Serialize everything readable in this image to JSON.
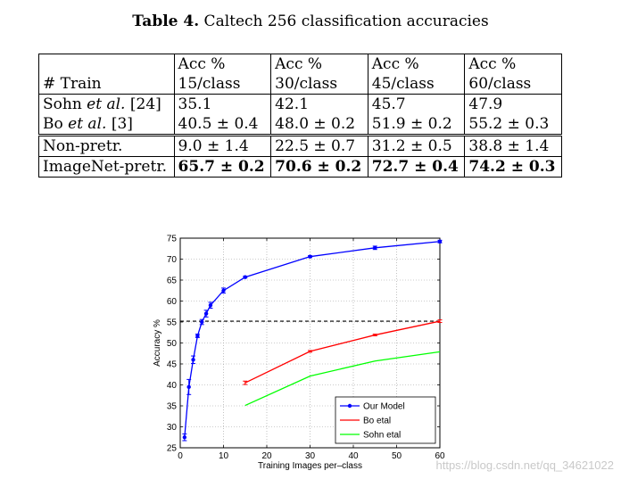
{
  "caption": {
    "label": "Table 4.",
    "text": " Caltech 256 classification accuracies"
  },
  "table": {
    "header": [
      [
        "",
        "Acc %",
        "Acc %",
        "Acc %",
        "Acc %"
      ],
      [
        "# Train",
        "15/class",
        "30/class",
        "45/class",
        "60/class"
      ]
    ],
    "rows": [
      {
        "method": "Sohn",
        "suffix": " et al.",
        "cite": " [24]",
        "values": [
          "35.1",
          "42.1",
          "45.7",
          "47.9"
        ]
      },
      {
        "method": "Bo",
        "suffix": " et al.",
        "cite": " [3]",
        "values": [
          "40.5 ± 0.4",
          "48.0 ± 0.2",
          "51.9 ± 0.2",
          "55.2 ± 0.3"
        ]
      },
      {
        "method": "Non-pretr.",
        "suffix": "",
        "cite": "",
        "values": [
          "9.0 ± 1.4",
          "22.5 ± 0.7",
          "31.2 ± 0.5",
          "38.8 ± 1.4"
        ]
      },
      {
        "method": "ImageNet-pretr.",
        "suffix": "",
        "cite": "",
        "values": [
          "65.7 ± 0.2",
          "70.6 ± 0.2",
          "72.7 ± 0.4",
          "74.2 ± 0.3"
        ]
      }
    ]
  },
  "chart_data": {
    "type": "line",
    "xlabel": "Training Images per–class",
    "ylabel": "Accuracy %",
    "xlim": [
      0,
      60
    ],
    "ylim": [
      25,
      75
    ],
    "xticks": [
      0,
      10,
      20,
      30,
      40,
      50,
      60
    ],
    "yticks": [
      25,
      30,
      35,
      40,
      45,
      50,
      55,
      60,
      65,
      70,
      75
    ],
    "grid": true,
    "legend_position": "bottom-right",
    "reference_line": {
      "y": 55.2,
      "style": "dashed",
      "color": "#000000"
    },
    "series": [
      {
        "name": "Our Model",
        "color": "#0000ff",
        "marker": "dot",
        "x": [
          1,
          2,
          3,
          4,
          5,
          6,
          7,
          10,
          15,
          30,
          45,
          60
        ],
        "y": [
          27.5,
          39.5,
          46.0,
          51.7,
          55.0,
          57.0,
          59.0,
          62.5,
          65.7,
          70.6,
          72.7,
          74.2
        ],
        "err": [
          0.8,
          1.8,
          0.9,
          0.4,
          0.6,
          0.8,
          0.7,
          0.6,
          0.2,
          0.2,
          0.4,
          0.3
        ]
      },
      {
        "name": "Bo etal",
        "color": "#ff0000",
        "marker": "none",
        "x": [
          15,
          30,
          45,
          60
        ],
        "y": [
          40.5,
          48.0,
          51.9,
          55.2
        ],
        "err": [
          0.4,
          0.2,
          0.2,
          0.3
        ]
      },
      {
        "name": "Sohn etal",
        "color": "#00ff00",
        "marker": "none",
        "x": [
          15,
          30,
          45,
          60
        ],
        "y": [
          35.1,
          42.1,
          45.7,
          47.9
        ],
        "err": []
      }
    ]
  },
  "watermark": "https://blog.csdn.net/qq_34621022"
}
